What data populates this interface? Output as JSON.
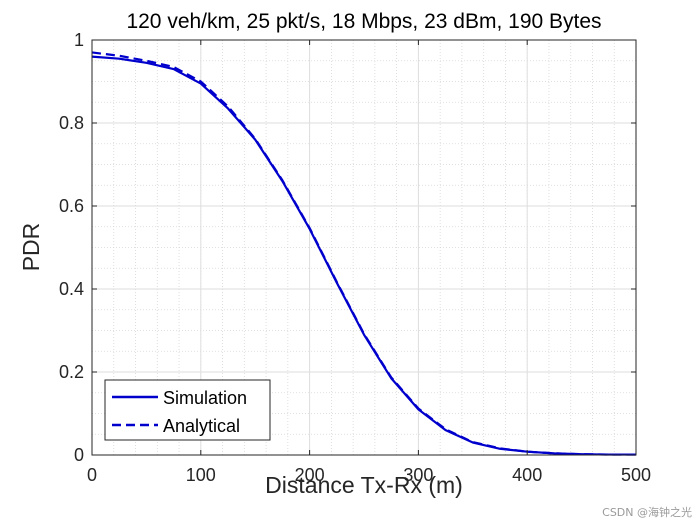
{
  "chart_data": {
    "type": "line",
    "title": "120 veh/km, 25 pkt/s, 18 Mbps, 23 dBm, 190 Bytes",
    "xlabel": "Distance Tx-Rx (m)",
    "ylabel": "PDR",
    "xlim": [
      0,
      500
    ],
    "ylim": [
      0,
      1
    ],
    "xticks": [
      0,
      100,
      200,
      300,
      400,
      500
    ],
    "yticks": [
      0,
      0.2,
      0.4,
      0.6,
      0.8,
      1
    ],
    "xtick_labels": [
      "0",
      "100",
      "200",
      "300",
      "400",
      "500"
    ],
    "ytick_labels": [
      "0",
      "0.2",
      "0.4",
      "0.6",
      "0.8",
      "1"
    ],
    "grid": true,
    "minor_grid": true,
    "legend_position": "bottom-left",
    "series": [
      {
        "name": "Simulation",
        "style": "solid",
        "color": "#0000CD",
        "x": [
          0,
          25,
          50,
          75,
          100,
          125,
          150,
          175,
          200,
          225,
          250,
          275,
          300,
          325,
          350,
          375,
          400,
          425,
          450,
          475,
          500
        ],
        "y": [
          0.96,
          0.955,
          0.945,
          0.93,
          0.895,
          0.835,
          0.76,
          0.66,
          0.545,
          0.415,
          0.29,
          0.185,
          0.11,
          0.06,
          0.03,
          0.015,
          0.008,
          0.004,
          0.002,
          0.001,
          0.001
        ]
      },
      {
        "name": "Analytical",
        "style": "dashed",
        "color": "#0000CD",
        "x": [
          0,
          25,
          50,
          75,
          100,
          125,
          150,
          175,
          200,
          225,
          250,
          275,
          300,
          325,
          350,
          375,
          400,
          425,
          450,
          475,
          500
        ],
        "y": [
          0.97,
          0.962,
          0.95,
          0.935,
          0.9,
          0.84,
          0.762,
          0.662,
          0.547,
          0.417,
          0.292,
          0.187,
          0.112,
          0.062,
          0.031,
          0.016,
          0.008,
          0.004,
          0.002,
          0.001,
          0.001
        ]
      }
    ]
  },
  "watermark": "CSDN @海钟之光"
}
